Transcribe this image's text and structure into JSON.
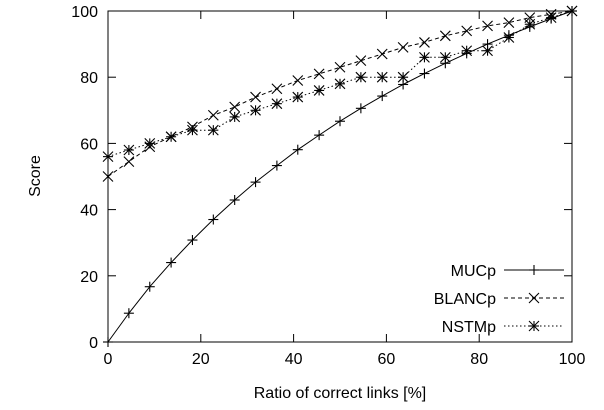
{
  "chart_data": {
    "type": "line",
    "xlabel": "Ratio of correct links [%]",
    "ylabel": "Score",
    "xlim": [
      0,
      100
    ],
    "ylim": [
      0,
      100
    ],
    "xticks": [
      0,
      20,
      40,
      60,
      80,
      100
    ],
    "yticks": [
      0,
      20,
      40,
      60,
      80,
      100
    ],
    "grid": false,
    "legend_position": "bottom-right",
    "series": [
      {
        "name": "MUCp",
        "line_style": "solid",
        "marker": "plus",
        "x": [
          0,
          4.5,
          9,
          13.6,
          18.2,
          22.7,
          27.3,
          31.8,
          36.4,
          40.9,
          45.5,
          50,
          54.5,
          59.1,
          63.6,
          68.2,
          72.7,
          77.3,
          81.8,
          86.4,
          90.9,
          95.5,
          100
        ],
        "y": [
          0,
          8.7,
          16.7,
          24,
          30.8,
          37,
          42.9,
          48.3,
          53.3,
          58.1,
          62.5,
          66.7,
          70.6,
          74.3,
          77.8,
          81.1,
          84.2,
          87.2,
          90,
          92.7,
          95.2,
          97.7,
          100
        ]
      },
      {
        "name": "BLANCp",
        "line_style": "dashed",
        "marker": "x",
        "x": [
          0,
          4.5,
          9,
          13.6,
          18.2,
          22.7,
          27.3,
          31.8,
          36.4,
          40.9,
          45.5,
          50,
          54.5,
          59.1,
          63.6,
          68.2,
          72.7,
          77.3,
          81.8,
          86.4,
          90.9,
          95.5,
          100
        ],
        "y": [
          50,
          54.5,
          59,
          62,
          65,
          68.5,
          71,
          74,
          76.5,
          79,
          81,
          83,
          85,
          87,
          89,
          90.5,
          92.5,
          94,
          95.5,
          96.5,
          98,
          99,
          100
        ]
      },
      {
        "name": "NSTMp",
        "line_style": "dotted",
        "marker": "asterisk",
        "x": [
          0,
          4.5,
          9,
          13.6,
          18.2,
          22.7,
          27.3,
          31.8,
          36.4,
          40.9,
          45.5,
          50,
          54.5,
          59.1,
          63.6,
          68.2,
          72.7,
          77.3,
          81.8,
          86.4,
          90.9,
          95.5,
          100
        ],
        "y": [
          56,
          58,
          60,
          62,
          64,
          64,
          68,
          70,
          72,
          74,
          76,
          78,
          80,
          80,
          80,
          86,
          86,
          88,
          88,
          92,
          96,
          98,
          100
        ]
      }
    ]
  }
}
